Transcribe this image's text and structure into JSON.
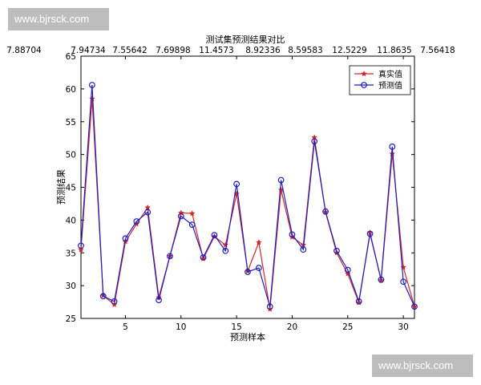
{
  "watermarks": {
    "top": "www.bjrsck.com",
    "bottom": "www.bjrsck.com"
  },
  "top_numbers": [
    "7.88704",
    "7.94734",
    "7.55642",
    "7.69898",
    "11.4573",
    "8.92336",
    "8.59583",
    "12.5229",
    "11.8635",
    "7.56418"
  ],
  "chart_data": {
    "type": "line",
    "title": "测试集预测结果对比",
    "xlabel": "预测样本",
    "ylabel": "预测结果",
    "xlim": [
      1,
      31
    ],
    "ylim": [
      25,
      65
    ],
    "xticks": [
      5,
      10,
      15,
      20,
      25,
      30
    ],
    "yticks": [
      25,
      30,
      35,
      40,
      45,
      50,
      55,
      60,
      65
    ],
    "grid": false,
    "legend_position": "top-right",
    "x": [
      1,
      2,
      3,
      4,
      5,
      6,
      7,
      8,
      9,
      10,
      11,
      12,
      13,
      14,
      15,
      16,
      17,
      18,
      19,
      20,
      21,
      22,
      23,
      24,
      25,
      26,
      27,
      28,
      29,
      30,
      31
    ],
    "series": [
      {
        "name": "真实值",
        "color": "#d62728",
        "marker": "star",
        "values": [
          35.5,
          58.5,
          28.5,
          27.1,
          36.7,
          39.4,
          41.9,
          28.2,
          34.5,
          41.1,
          41.0,
          34.1,
          37.5,
          36.2,
          44.0,
          32.2,
          36.6,
          26.4,
          44.6,
          37.4,
          36.2,
          52.6,
          41.2,
          35.0,
          31.8,
          27.4,
          38.1,
          30.8,
          50.1,
          32.8,
          26.8
        ]
      },
      {
        "name": "预测值",
        "color": "#1f1fbf",
        "marker": "circle",
        "values": [
          36.1,
          60.6,
          28.4,
          27.6,
          37.2,
          39.8,
          41.2,
          27.8,
          34.5,
          40.6,
          39.3,
          34.3,
          37.7,
          35.3,
          45.5,
          32.1,
          32.7,
          26.8,
          46.1,
          37.8,
          35.5,
          52.0,
          41.3,
          35.3,
          32.4,
          27.6,
          37.9,
          30.9,
          51.2,
          30.6,
          26.8
        ]
      }
    ]
  }
}
